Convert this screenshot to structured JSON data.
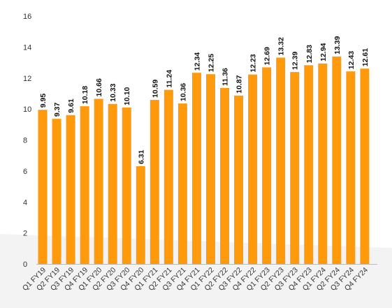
{
  "chart_data": {
    "type": "bar",
    "categories": [
      "Q1 FY19",
      "Q2 FY19",
      "Q3 FY19",
      "Q4 FY19",
      "Q1 FY20",
      "Q2 FY20",
      "Q3 FY20",
      "Q4 FY20",
      "Q1 FY21",
      "Q2 FY21",
      "Q3 FY21",
      "Q4 FY21",
      "Q1 FY22",
      "Q2 FY22",
      "Q3 FY22",
      "Q4 FY22",
      "Q1 FY23",
      "Q2 FY23",
      "Q3 FY23",
      "Q4 FY23",
      "Q1 FY24",
      "Q2 FY24",
      "Q3 FY24",
      "Q4 FY24"
    ],
    "values": [
      9.95,
      9.37,
      9.61,
      10.18,
      10.66,
      10.33,
      10.1,
      6.31,
      10.59,
      11.24,
      10.36,
      12.34,
      12.25,
      11.36,
      10.87,
      12.23,
      12.69,
      13.32,
      12.39,
      12.83,
      12.94,
      13.39,
      12.43,
      12.61
    ],
    "value_labels": [
      "9.95",
      "9.37",
      "9.61",
      "10.18",
      "10.66",
      "10.33",
      "10.10",
      "6.31",
      "10.59",
      "11.24",
      "10.36",
      "12.34",
      "12.25",
      "11.36",
      "10.87",
      "12.23",
      "12.69",
      "13.32",
      "12.39",
      "12.83",
      "12.94",
      "13.39",
      "12.43",
      "12.61"
    ],
    "title": "",
    "xlabel": "",
    "ylabel": "",
    "ylim": [
      0,
      16
    ],
    "yticks": [
      "0",
      "2",
      "4",
      "6",
      "8",
      "10",
      "12",
      "14",
      "16"
    ],
    "grid": false,
    "legend": "none",
    "colors": {
      "bar": "#ff9a0c",
      "text": "#333333",
      "axis": "#bbbbbb",
      "background": "#f3f3f3",
      "panel": "#ffffff"
    }
  }
}
